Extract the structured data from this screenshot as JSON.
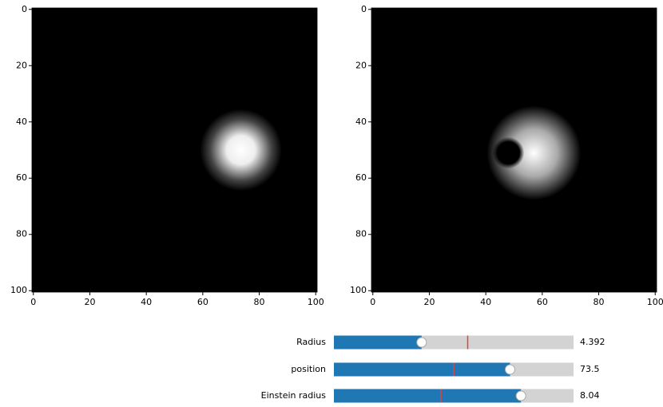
{
  "chart_data": [
    {
      "type": "image",
      "colormap": "gray",
      "xlim": [
        -0.5,
        100.5
      ],
      "ylim": [
        100.5,
        -0.5
      ],
      "xticks": [
        0,
        20,
        40,
        60,
        80,
        100
      ],
      "yticks": [
        0,
        20,
        40,
        60,
        80,
        100
      ]
    },
    {
      "type": "image",
      "colormap": "gray",
      "xlim": [
        -0.5,
        100.5
      ],
      "ylim": [
        100.5,
        -0.5
      ],
      "xticks": [
        0,
        20,
        40,
        60,
        80,
        100
      ],
      "yticks": [
        0,
        20,
        40,
        60,
        80,
        100
      ]
    }
  ],
  "sliders": [
    {
      "label": "Radius",
      "value": 4.392,
      "min": 0,
      "max": 12,
      "initial": 6.7,
      "color": "#1f77b4"
    },
    {
      "label": "position",
      "value": 73.5,
      "min": 0,
      "max": 100,
      "initial": 50,
      "color": "#1f77b4"
    },
    {
      "label": "Einstein radius",
      "value": 8.04,
      "min": 0,
      "max": 10.3,
      "initial": 4.6,
      "color": "#1f77b4"
    }
  ]
}
